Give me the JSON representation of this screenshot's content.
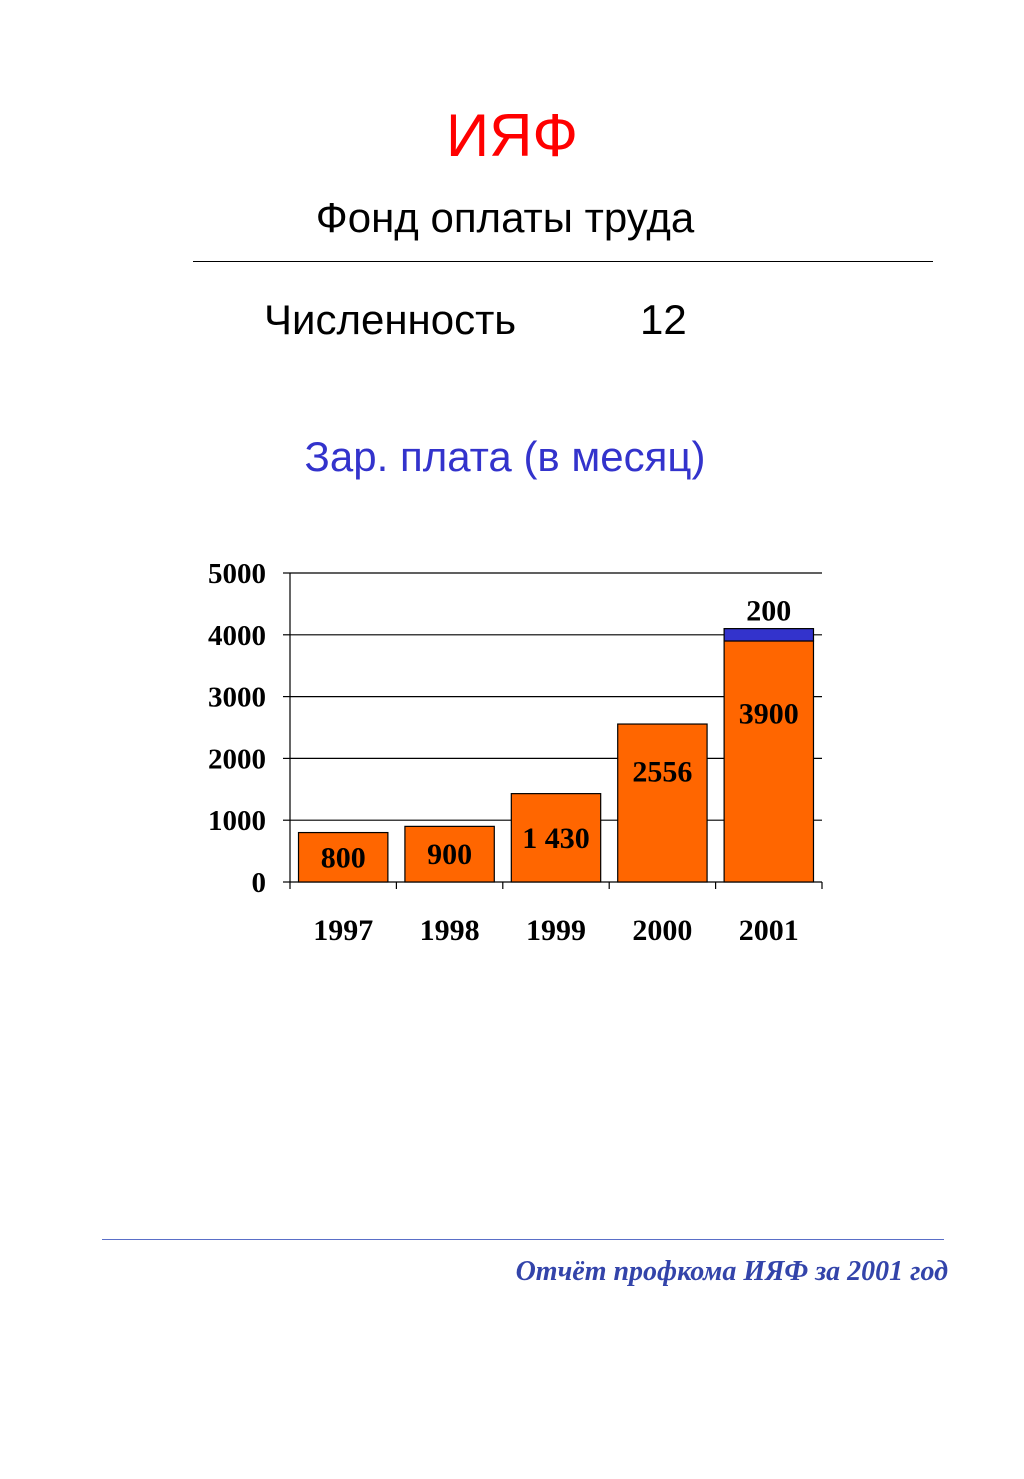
{
  "header": {
    "title": "ИЯФ",
    "subtitle": "Фонд оплаты труда"
  },
  "headcount": {
    "label": "Численность",
    "value": "12"
  },
  "chart_heading": "Зар. плата (в месяц)",
  "footer": {
    "text": "Отчёт профкома ИЯФ за 2001 год"
  },
  "colors": {
    "title": "#ff0000",
    "chart_heading": "#3333cc",
    "footer": "#3344aa",
    "bar_main": "#ff6600",
    "bar_extra": "#3333cc"
  },
  "chart_data": {
    "type": "bar",
    "stacked": true,
    "categories": [
      "1997",
      "1998",
      "1999",
      "2000",
      "2001"
    ],
    "series": [
      {
        "color": "#ff6600",
        "values": [
          800,
          900,
          1430,
          2556,
          3900
        ],
        "labels": [
          "800",
          "900",
          "1 430",
          "2556",
          "3900"
        ]
      },
      {
        "color": "#3333cc",
        "values": [
          0,
          0,
          0,
          0,
          200
        ],
        "labels": [
          "",
          "",
          "",
          "",
          "200"
        ]
      }
    ],
    "ylim": [
      0,
      5000
    ],
    "yticks": [
      0,
      1000,
      2000,
      3000,
      4000,
      5000
    ],
    "grid": true,
    "legend": "none"
  }
}
